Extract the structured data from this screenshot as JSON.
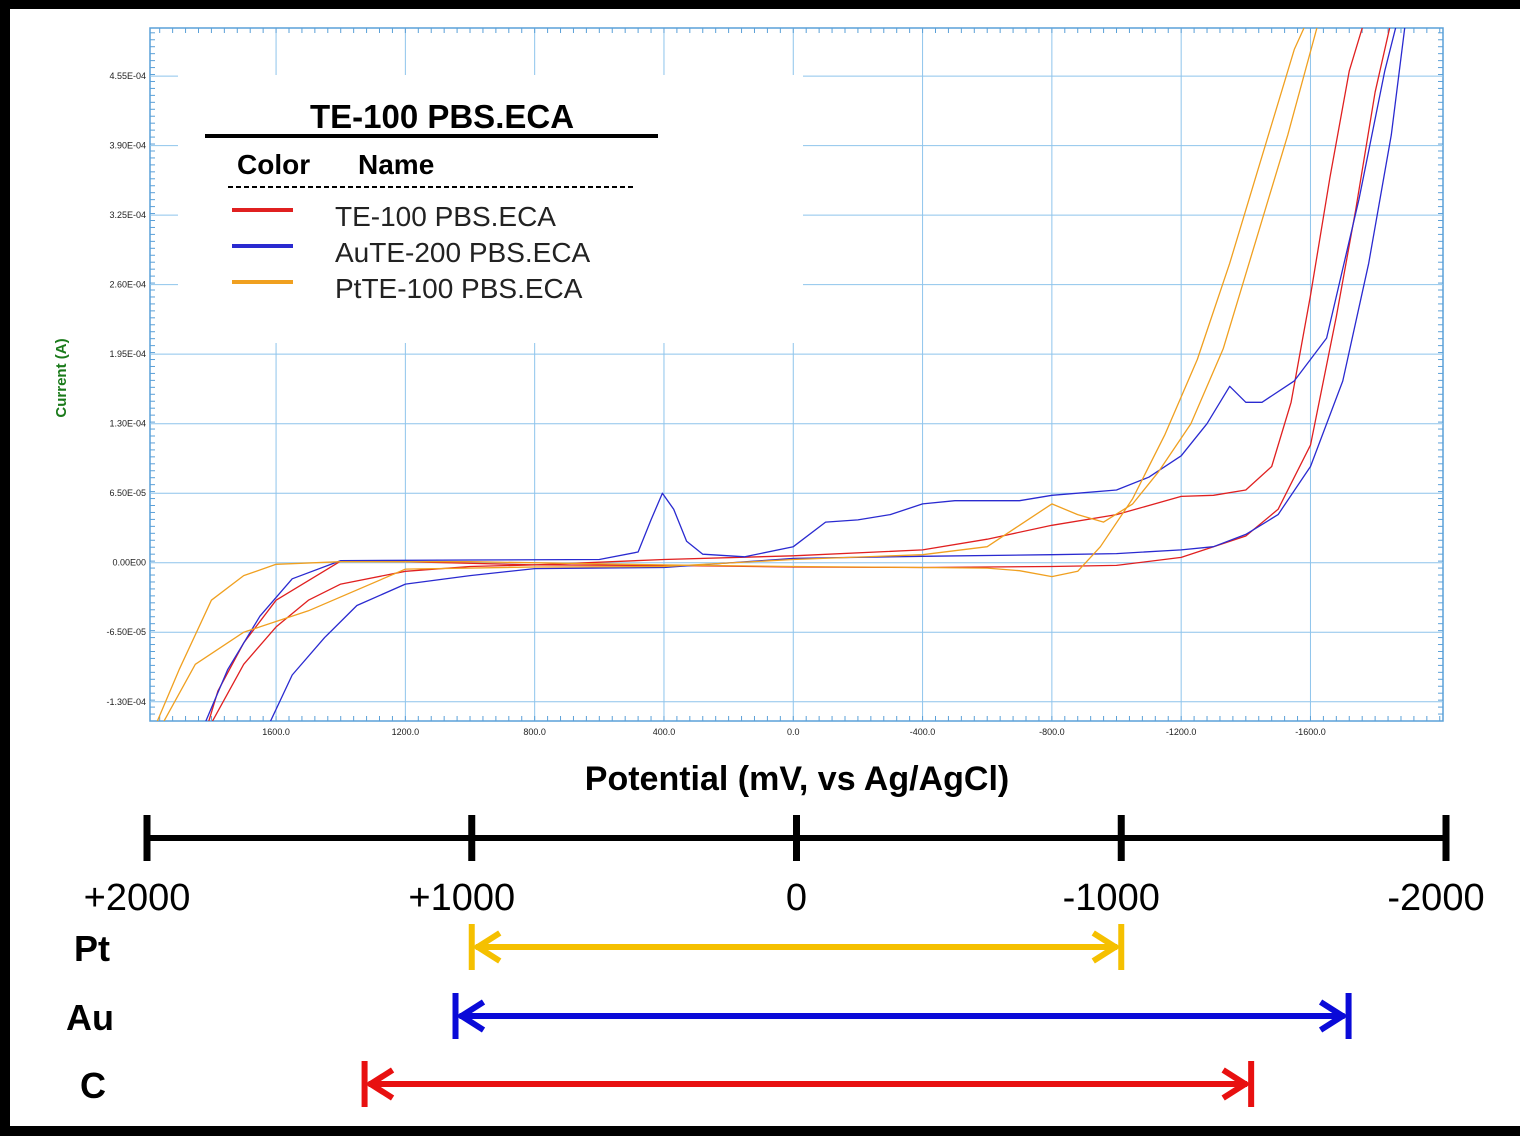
{
  "chart_data": {
    "type": "line",
    "title": "TE-100 PBS.ECA",
    "xlabel": "Potential (mV, vs Ag/AgCl)",
    "ylabel": "Current (A)",
    "xlim": [
      1990,
      -2010
    ],
    "ylim": [
      -0.000148,
      0.0005
    ],
    "x_reversed": true,
    "x_ticks": [
      1600,
      1200,
      800,
      400,
      0,
      -400,
      -800,
      -1200,
      -1600
    ],
    "x_tick_labels": [
      "1600.0",
      "1200.0",
      "800.0",
      "400.0",
      "0.0",
      "-400.0",
      "-800.0",
      "-1200.0",
      "-1600.0"
    ],
    "y_ticks": [
      0.000455,
      0.00039,
      0.000325,
      0.00026,
      0.000195,
      0.00013,
      6.5e-05,
      0,
      -6.5e-05,
      -0.00013
    ],
    "y_tick_labels": [
      "4.55E-04",
      "3.90E-04",
      "3.25E-04",
      "2.60E-04",
      "1.95E-04",
      "1.30E-04",
      "6.50E-05",
      "0.00E00",
      "-6.50E-05",
      "-1.30E-04"
    ],
    "grid": true,
    "legend": {
      "position": "top-left",
      "color_header": "Color",
      "name_header": "Name"
    },
    "series": [
      {
        "name": "TE-100 PBS.ECA",
        "color": "#e02020",
        "points": [
          [
            1800,
            -0.00015
          ],
          [
            1700,
            -9.5e-05
          ],
          [
            1600,
            -6e-05
          ],
          [
            1500,
            -3.5e-05
          ],
          [
            1400,
            -2e-05
          ],
          [
            1200,
            -8e-06
          ],
          [
            1000,
            -3.5e-06
          ],
          [
            800,
            -2e-06
          ],
          [
            400,
            3e-06
          ],
          [
            0,
            6.5e-06
          ],
          [
            -400,
            1.2e-05
          ],
          [
            -600,
            2.2e-05
          ],
          [
            -800,
            3.5e-05
          ],
          [
            -1000,
            4.5e-05
          ],
          [
            -1200,
            6.2e-05
          ],
          [
            -1300,
            6.3e-05
          ],
          [
            -1400,
            6.8e-05
          ],
          [
            -1480,
            9e-05
          ],
          [
            -1540,
            0.00015
          ],
          [
            -1600,
            0.00025
          ],
          [
            -1660,
            0.00036
          ],
          [
            -1720,
            0.00046
          ],
          [
            -1780,
            0.00052
          ]
        ],
        "points_return": [
          [
            -1860,
            0.00052
          ],
          [
            -1800,
            0.00044
          ],
          [
            -1740,
            0.00033
          ],
          [
            -1680,
            0.00023
          ],
          [
            -1600,
            0.00011
          ],
          [
            -1500,
            5e-05
          ],
          [
            -1400,
            2.5e-05
          ],
          [
            -1300,
            1.5e-05
          ],
          [
            -1200,
            5e-06
          ],
          [
            -1000,
            -2.5e-06
          ],
          [
            -800,
            -3.5e-06
          ],
          [
            -400,
            -4.5e-06
          ],
          [
            0,
            -4e-06
          ],
          [
            400,
            -2.5e-06
          ],
          [
            800,
            -2e-06
          ],
          [
            1200,
            1e-06
          ],
          [
            1400,
            1.5e-06
          ],
          [
            1600,
            -3.5e-05
          ],
          [
            1700,
            -7.5e-05
          ],
          [
            1780,
            -0.00012
          ],
          [
            1810,
            -0.00015
          ]
        ]
      },
      {
        "name": "AuTE-200 PBS.ECA",
        "color": "#2a2ad0",
        "points": [
          [
            1820,
            -0.00015
          ],
          [
            1750,
            -0.0001
          ],
          [
            1650,
            -5e-05
          ],
          [
            1550,
            -1.5e-05
          ],
          [
            1400,
            2e-06
          ],
          [
            1000,
            2.5e-06
          ],
          [
            600,
            3e-06
          ],
          [
            480,
            1e-05
          ],
          [
            440,
            4e-05
          ],
          [
            405,
            6.5e-05
          ],
          [
            370,
            5e-05
          ],
          [
            330,
            2e-05
          ],
          [
            280,
            8e-06
          ],
          [
            150,
            5.5e-06
          ],
          [
            0,
            1.5e-05
          ],
          [
            -100,
            3.8e-05
          ],
          [
            -200,
            4e-05
          ],
          [
            -300,
            4.5e-05
          ],
          [
            -400,
            5.5e-05
          ],
          [
            -500,
            5.8e-05
          ],
          [
            -700,
            5.8e-05
          ],
          [
            -800,
            6.3e-05
          ],
          [
            -1000,
            6.8e-05
          ],
          [
            -1100,
            8e-05
          ],
          [
            -1200,
            0.0001
          ],
          [
            -1280,
            0.00013
          ],
          [
            -1350,
            0.000165
          ],
          [
            -1400,
            0.00015
          ],
          [
            -1450,
            0.00015
          ],
          [
            -1550,
            0.00017
          ],
          [
            -1650,
            0.00021
          ],
          [
            -1750,
            0.00034
          ],
          [
            -1830,
            0.00046
          ],
          [
            -1880,
            0.00052
          ]
        ],
        "points_return": [
          [
            -1900,
            0.00052
          ],
          [
            -1850,
            0.0004
          ],
          [
            -1780,
            0.00028
          ],
          [
            -1700,
            0.00017
          ],
          [
            -1600,
            9e-05
          ],
          [
            -1500,
            4.5e-05
          ],
          [
            -1400,
            2.65e-05
          ],
          [
            -1300,
            1.5e-05
          ],
          [
            -1200,
            1.2e-05
          ],
          [
            -1000,
            8.5e-06
          ],
          [
            -800,
            7.5e-06
          ],
          [
            -400,
            6e-06
          ],
          [
            0,
            4e-06
          ],
          [
            400,
            -4.5e-06
          ],
          [
            800,
            -5.5e-06
          ],
          [
            1000,
            -1.2e-05
          ],
          [
            1200,
            -2e-05
          ],
          [
            1350,
            -4e-05
          ],
          [
            1450,
            -7e-05
          ],
          [
            1550,
            -0.000105
          ],
          [
            1620,
            -0.00015
          ]
        ]
      },
      {
        "name": "PtTE-100 PBS.ECA",
        "color": "#f0a020",
        "points": [
          [
            1970,
            -0.00015
          ],
          [
            1900,
            -0.0001
          ],
          [
            1800,
            -3.5e-05
          ],
          [
            1700,
            -1.2e-05
          ],
          [
            1600,
            -1.5e-06
          ],
          [
            1400,
            1e-06
          ],
          [
            1000,
            1e-06
          ],
          [
            400,
            -2e-06
          ],
          [
            0,
            -3.5e-06
          ],
          [
            -400,
            -4.5e-06
          ],
          [
            -600,
            -5e-06
          ],
          [
            -700,
            -7.5e-06
          ],
          [
            -800,
            -1.3e-05
          ],
          [
            -880,
            -8e-06
          ],
          [
            -950,
            1.5e-05
          ],
          [
            -1050,
            6e-05
          ],
          [
            -1150,
            0.00012
          ],
          [
            -1250,
            0.00019
          ],
          [
            -1350,
            0.00028
          ],
          [
            -1450,
            0.00038
          ],
          [
            -1550,
            0.00048
          ],
          [
            -1580,
            0.0005
          ]
        ],
        "points_return": [
          [
            -1620,
            0.0005
          ],
          [
            -1530,
            0.0004
          ],
          [
            -1430,
            0.0003
          ],
          [
            -1330,
            0.0002
          ],
          [
            -1230,
            0.00013
          ],
          [
            -1130,
            8.5e-05
          ],
          [
            -1050,
            5.5e-05
          ],
          [
            -960,
            3.8e-05
          ],
          [
            -880,
            4.5e-05
          ],
          [
            -800,
            5.5e-05
          ],
          [
            -700,
            3.5e-05
          ],
          [
            -600,
            1.5e-05
          ],
          [
            -400,
            7.5e-06
          ],
          [
            0,
            3e-06
          ],
          [
            400,
            -3.5e-06
          ],
          [
            800,
            -4e-06
          ],
          [
            1200,
            -6e-06
          ],
          [
            1500,
            -4.5e-05
          ],
          [
            1700,
            -6.5e-05
          ],
          [
            1850,
            -9.5e-05
          ],
          [
            1950,
            -0.00015
          ]
        ]
      }
    ]
  },
  "scale": {
    "ticks": [
      {
        "value": 2000,
        "label": "+2000"
      },
      {
        "value": 1000,
        "label": "+1000"
      },
      {
        "value": 0,
        "label": "0"
      },
      {
        "value": -1000,
        "label": "-1000"
      },
      {
        "value": -2000,
        "label": "-2000"
      }
    ]
  },
  "windows": [
    {
      "label": "Pt",
      "from": 1000,
      "to": -1000,
      "color": "#f5c000"
    },
    {
      "label": "Au",
      "from": 1050,
      "to": -1700,
      "color": "#0a0ad8"
    },
    {
      "label": "C",
      "from": 1330,
      "to": -1400,
      "color": "#e81010"
    }
  ]
}
